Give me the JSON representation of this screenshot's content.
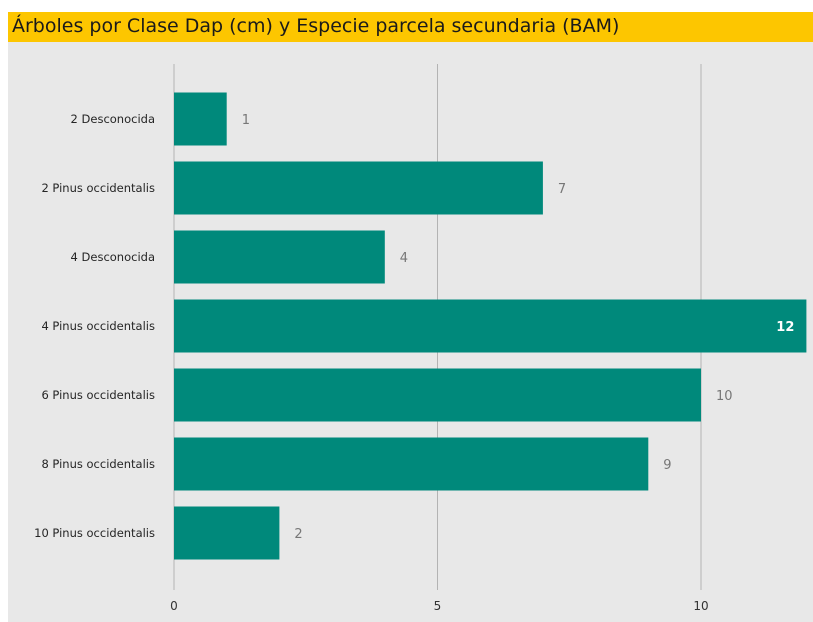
{
  "colors": {
    "bar": "#00897b",
    "title_background": "#fdc600",
    "panel": "#e8e8e8",
    "gridline": "#b3b3b3"
  },
  "chart_data": {
    "type": "bar",
    "orientation": "horizontal",
    "title": "Árboles por Clase Dap (cm) y Especie parcela secundaria (BAM)",
    "categories": [
      "2 Desconocida",
      "2 Pinus occidentalis",
      "4 Desconocida",
      "4 Pinus occidentalis",
      "6 Pinus occidentalis",
      "8 Pinus occidentalis",
      "10 Pinus occidentalis"
    ],
    "values": [
      1,
      7,
      4,
      12,
      10,
      9,
      2
    ],
    "xlim": [
      0,
      12
    ],
    "xticks": [
      0,
      5,
      10
    ],
    "grid": true,
    "data_labels": true
  }
}
